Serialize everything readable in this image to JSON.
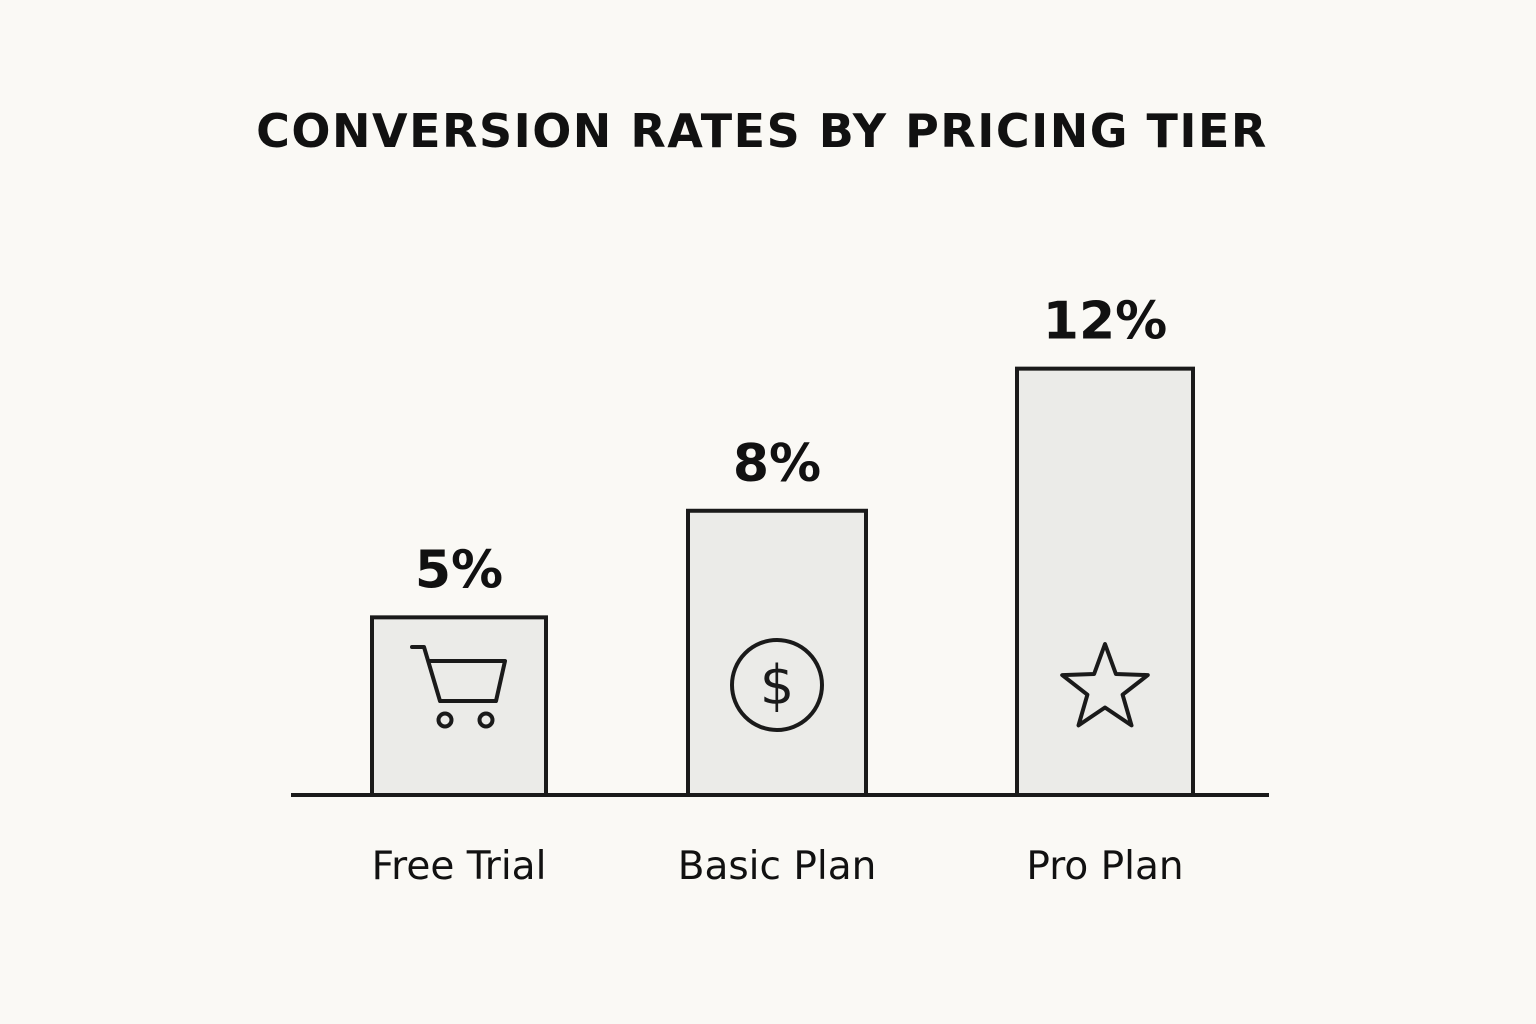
{
  "chart_data": {
    "type": "bar",
    "title": "CONVERSION RATES BY PRICING TIER",
    "categories": [
      "Free Trial",
      "Basic Plan",
      "Pro Plan"
    ],
    "values": [
      5,
      8,
      12
    ],
    "value_labels": [
      "5%",
      "8%",
      "12%"
    ],
    "icons": [
      "shopping-cart-icon",
      "dollar-circle-icon",
      "star-icon"
    ],
    "xlabel": "",
    "ylabel": "",
    "ylim": [
      0,
      12.75
    ],
    "grid": false,
    "legend": "none",
    "colors": {
      "background": "#faf9f5",
      "bar_fill": "#ebebe8",
      "stroke": "#1a1a1a",
      "text": "#111111"
    }
  }
}
